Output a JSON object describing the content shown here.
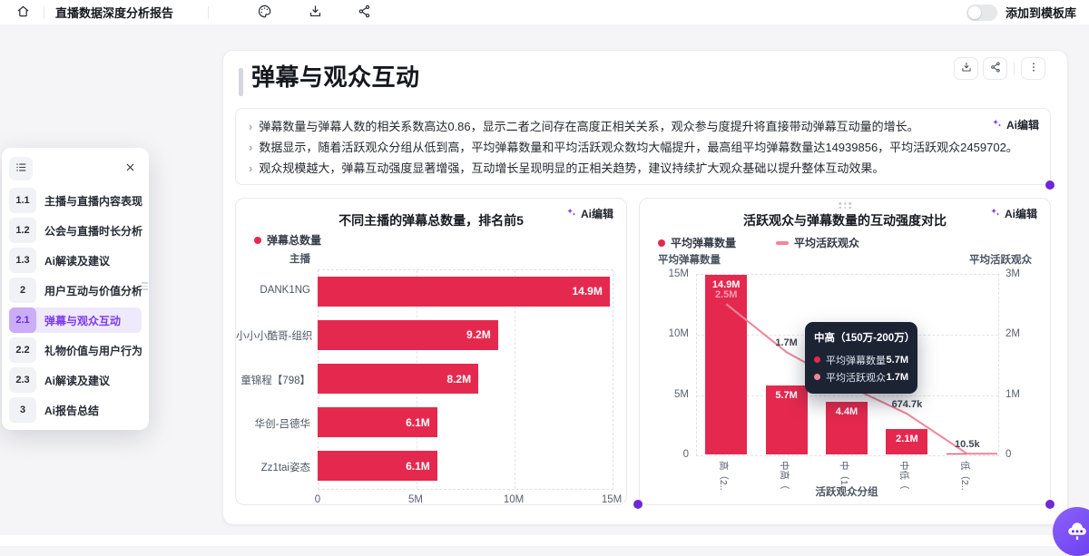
{
  "topbar": {
    "title": "直播数据深度分析报告",
    "toggle_label": "添加到模板库",
    "toggle_on": false
  },
  "toc": {
    "items": [
      {
        "num": "1.1",
        "label": "主播与直播内容表现",
        "active": false
      },
      {
        "num": "1.2",
        "label": "公会与直播时长分析",
        "active": false
      },
      {
        "num": "1.3",
        "label": "Ai解读及建议",
        "active": false
      },
      {
        "num": "2",
        "label": "用户互动与价值分析",
        "active": false
      },
      {
        "num": "2.1",
        "label": "弹幕与观众互动",
        "active": true
      },
      {
        "num": "2.2",
        "label": "礼物价值与用户行为",
        "active": false
      },
      {
        "num": "2.3",
        "label": "Ai解读及建议",
        "active": false
      },
      {
        "num": "3",
        "label": "Ai报告总结",
        "active": false
      }
    ]
  },
  "report": {
    "section_title": "弹幕与观众互动",
    "ai_edit_label": "Ai编辑",
    "summary_points": [
      "弹幕数量与弹幕人数的相关系数高达0.86，显示二者之间存在高度正相关关系，观众参与度提升将直接带动弹幕互动量的增长。",
      "数据显示，随着活跃观众分组从低到高，平均弹幕数量和平均活跃观众数均大幅提升，最高组平均弹幕数量达14939856，平均活跃观众2459702。",
      "观众规模越大，弹幕互动强度显著增强，互动增长呈现明显的正相关趋势，建议持续扩大观众基础以提升整体互动效果。"
    ]
  },
  "chart_data": [
    {
      "type": "bar",
      "orientation": "horizontal",
      "title": "不同主播的弹幕总数量，排名前5",
      "ylabel": "主播",
      "categories": [
        "DANK1NG",
        "小小小酷哥-组织",
        "童锦程【798】",
        "华创-吕德华",
        "Zz1tai姿态"
      ],
      "series": [
        {
          "name": "弹幕总数量",
          "values": [
            14900000,
            9200000,
            8200000,
            6100000,
            6100000
          ],
          "labels": [
            "14.9M",
            "9.2M",
            "8.2M",
            "6.1M",
            "6.1M"
          ],
          "color": "#e5294e"
        }
      ],
      "xlim": [
        0,
        15000000
      ],
      "x_ticks": [
        "0",
        "5M",
        "10M",
        "15M"
      ],
      "grid": "dashed"
    },
    {
      "type": "combo-bar-line",
      "title": "活跃观众与弹幕数量的互动强度对比",
      "xlabel": "活跃观众分组",
      "ylabel_left": "平均弹幕数量",
      "ylabel_right": "平均活跃观众",
      "categories_display": [
        "高（2...",
        "中高（...",
        "中（1...",
        "中低（...",
        "低（2..."
      ],
      "series": [
        {
          "name": "平均弹幕数量",
          "type": "bar",
          "axis": "left",
          "values": [
            14900000,
            5700000,
            4400000,
            2100000,
            0
          ],
          "labels": [
            "14.9M",
            "5.7M",
            "4.4M",
            "2.1M",
            null
          ],
          "color": "#e5294e"
        },
        {
          "name": "平均活跃观众",
          "type": "line",
          "axis": "right",
          "values": [
            2500000,
            1700000,
            1150000,
            674700,
            10500
          ],
          "labels": [
            "2.5M",
            "1.7M",
            null,
            "674.7k",
            "10.5k"
          ],
          "color": "#f2849a"
        }
      ],
      "ylim_left": [
        0,
        15000000
      ],
      "y_ticks_left": [
        "15M",
        "10M",
        "5M",
        "0"
      ],
      "ylim_right": [
        0,
        3000000
      ],
      "y_ticks_right": [
        "3M",
        "2M",
        "1M",
        "0"
      ],
      "grid": "dashed",
      "tooltip": {
        "title": "中高（150万-200万）",
        "rows": [
          {
            "label": "平均弹幕数量",
            "value": "5.7M",
            "color": "#e5294e"
          },
          {
            "label": "平均活跃观众",
            "value": "1.7M",
            "color": "#f2849a"
          }
        ]
      }
    }
  ],
  "colors": {
    "bar_red": "#e5294e",
    "line_pink": "#f2849a",
    "accent_purple": "#7c3aed",
    "selection_purple": "#6d28d9",
    "tooltip_bg": "#1c2434"
  }
}
